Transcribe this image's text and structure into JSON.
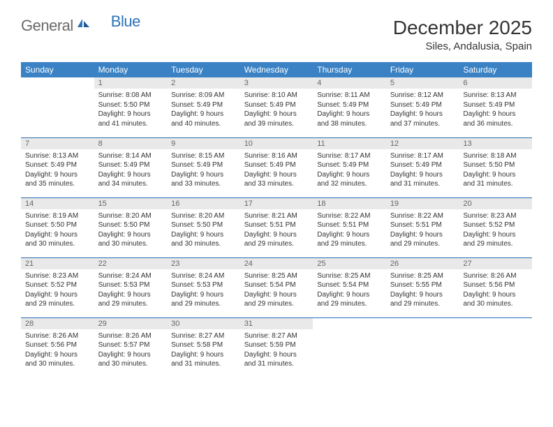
{
  "logo": {
    "text1": "General",
    "text2": "Blue",
    "color1": "#6b6b6b",
    "color2": "#2b72b8"
  },
  "title": "December 2025",
  "location": "Siles, Andalusia, Spain",
  "colors": {
    "header_bg": "#3a82c4",
    "header_text": "#ffffff",
    "daynum_bg": "#e9e9e9",
    "daynum_text": "#666666",
    "border": "#2b6fb0",
    "body_text": "#333333"
  },
  "weekdays": [
    "Sunday",
    "Monday",
    "Tuesday",
    "Wednesday",
    "Thursday",
    "Friday",
    "Saturday"
  ],
  "weeks": [
    [
      {
        "empty": true
      },
      {
        "day": "1",
        "sunrise": "Sunrise: 8:08 AM",
        "sunset": "Sunset: 5:50 PM",
        "daylight1": "Daylight: 9 hours",
        "daylight2": "and 41 minutes."
      },
      {
        "day": "2",
        "sunrise": "Sunrise: 8:09 AM",
        "sunset": "Sunset: 5:49 PM",
        "daylight1": "Daylight: 9 hours",
        "daylight2": "and 40 minutes."
      },
      {
        "day": "3",
        "sunrise": "Sunrise: 8:10 AM",
        "sunset": "Sunset: 5:49 PM",
        "daylight1": "Daylight: 9 hours",
        "daylight2": "and 39 minutes."
      },
      {
        "day": "4",
        "sunrise": "Sunrise: 8:11 AM",
        "sunset": "Sunset: 5:49 PM",
        "daylight1": "Daylight: 9 hours",
        "daylight2": "and 38 minutes."
      },
      {
        "day": "5",
        "sunrise": "Sunrise: 8:12 AM",
        "sunset": "Sunset: 5:49 PM",
        "daylight1": "Daylight: 9 hours",
        "daylight2": "and 37 minutes."
      },
      {
        "day": "6",
        "sunrise": "Sunrise: 8:13 AM",
        "sunset": "Sunset: 5:49 PM",
        "daylight1": "Daylight: 9 hours",
        "daylight2": "and 36 minutes."
      }
    ],
    [
      {
        "day": "7",
        "sunrise": "Sunrise: 8:13 AM",
        "sunset": "Sunset: 5:49 PM",
        "daylight1": "Daylight: 9 hours",
        "daylight2": "and 35 minutes."
      },
      {
        "day": "8",
        "sunrise": "Sunrise: 8:14 AM",
        "sunset": "Sunset: 5:49 PM",
        "daylight1": "Daylight: 9 hours",
        "daylight2": "and 34 minutes."
      },
      {
        "day": "9",
        "sunrise": "Sunrise: 8:15 AM",
        "sunset": "Sunset: 5:49 PM",
        "daylight1": "Daylight: 9 hours",
        "daylight2": "and 33 minutes."
      },
      {
        "day": "10",
        "sunrise": "Sunrise: 8:16 AM",
        "sunset": "Sunset: 5:49 PM",
        "daylight1": "Daylight: 9 hours",
        "daylight2": "and 33 minutes."
      },
      {
        "day": "11",
        "sunrise": "Sunrise: 8:17 AM",
        "sunset": "Sunset: 5:49 PM",
        "daylight1": "Daylight: 9 hours",
        "daylight2": "and 32 minutes."
      },
      {
        "day": "12",
        "sunrise": "Sunrise: 8:17 AM",
        "sunset": "Sunset: 5:49 PM",
        "daylight1": "Daylight: 9 hours",
        "daylight2": "and 31 minutes."
      },
      {
        "day": "13",
        "sunrise": "Sunrise: 8:18 AM",
        "sunset": "Sunset: 5:50 PM",
        "daylight1": "Daylight: 9 hours",
        "daylight2": "and 31 minutes."
      }
    ],
    [
      {
        "day": "14",
        "sunrise": "Sunrise: 8:19 AM",
        "sunset": "Sunset: 5:50 PM",
        "daylight1": "Daylight: 9 hours",
        "daylight2": "and 30 minutes."
      },
      {
        "day": "15",
        "sunrise": "Sunrise: 8:20 AM",
        "sunset": "Sunset: 5:50 PM",
        "daylight1": "Daylight: 9 hours",
        "daylight2": "and 30 minutes."
      },
      {
        "day": "16",
        "sunrise": "Sunrise: 8:20 AM",
        "sunset": "Sunset: 5:50 PM",
        "daylight1": "Daylight: 9 hours",
        "daylight2": "and 30 minutes."
      },
      {
        "day": "17",
        "sunrise": "Sunrise: 8:21 AM",
        "sunset": "Sunset: 5:51 PM",
        "daylight1": "Daylight: 9 hours",
        "daylight2": "and 29 minutes."
      },
      {
        "day": "18",
        "sunrise": "Sunrise: 8:22 AM",
        "sunset": "Sunset: 5:51 PM",
        "daylight1": "Daylight: 9 hours",
        "daylight2": "and 29 minutes."
      },
      {
        "day": "19",
        "sunrise": "Sunrise: 8:22 AM",
        "sunset": "Sunset: 5:51 PM",
        "daylight1": "Daylight: 9 hours",
        "daylight2": "and 29 minutes."
      },
      {
        "day": "20",
        "sunrise": "Sunrise: 8:23 AM",
        "sunset": "Sunset: 5:52 PM",
        "daylight1": "Daylight: 9 hours",
        "daylight2": "and 29 minutes."
      }
    ],
    [
      {
        "day": "21",
        "sunrise": "Sunrise: 8:23 AM",
        "sunset": "Sunset: 5:52 PM",
        "daylight1": "Daylight: 9 hours",
        "daylight2": "and 29 minutes."
      },
      {
        "day": "22",
        "sunrise": "Sunrise: 8:24 AM",
        "sunset": "Sunset: 5:53 PM",
        "daylight1": "Daylight: 9 hours",
        "daylight2": "and 29 minutes."
      },
      {
        "day": "23",
        "sunrise": "Sunrise: 8:24 AM",
        "sunset": "Sunset: 5:53 PM",
        "daylight1": "Daylight: 9 hours",
        "daylight2": "and 29 minutes."
      },
      {
        "day": "24",
        "sunrise": "Sunrise: 8:25 AM",
        "sunset": "Sunset: 5:54 PM",
        "daylight1": "Daylight: 9 hours",
        "daylight2": "and 29 minutes."
      },
      {
        "day": "25",
        "sunrise": "Sunrise: 8:25 AM",
        "sunset": "Sunset: 5:54 PM",
        "daylight1": "Daylight: 9 hours",
        "daylight2": "and 29 minutes."
      },
      {
        "day": "26",
        "sunrise": "Sunrise: 8:25 AM",
        "sunset": "Sunset: 5:55 PM",
        "daylight1": "Daylight: 9 hours",
        "daylight2": "and 29 minutes."
      },
      {
        "day": "27",
        "sunrise": "Sunrise: 8:26 AM",
        "sunset": "Sunset: 5:56 PM",
        "daylight1": "Daylight: 9 hours",
        "daylight2": "and 30 minutes."
      }
    ],
    [
      {
        "day": "28",
        "sunrise": "Sunrise: 8:26 AM",
        "sunset": "Sunset: 5:56 PM",
        "daylight1": "Daylight: 9 hours",
        "daylight2": "and 30 minutes."
      },
      {
        "day": "29",
        "sunrise": "Sunrise: 8:26 AM",
        "sunset": "Sunset: 5:57 PM",
        "daylight1": "Daylight: 9 hours",
        "daylight2": "and 30 minutes."
      },
      {
        "day": "30",
        "sunrise": "Sunrise: 8:27 AM",
        "sunset": "Sunset: 5:58 PM",
        "daylight1": "Daylight: 9 hours",
        "daylight2": "and 31 minutes."
      },
      {
        "day": "31",
        "sunrise": "Sunrise: 8:27 AM",
        "sunset": "Sunset: 5:59 PM",
        "daylight1": "Daylight: 9 hours",
        "daylight2": "and 31 minutes."
      },
      {
        "empty": true
      },
      {
        "empty": true
      },
      {
        "empty": true
      }
    ]
  ]
}
